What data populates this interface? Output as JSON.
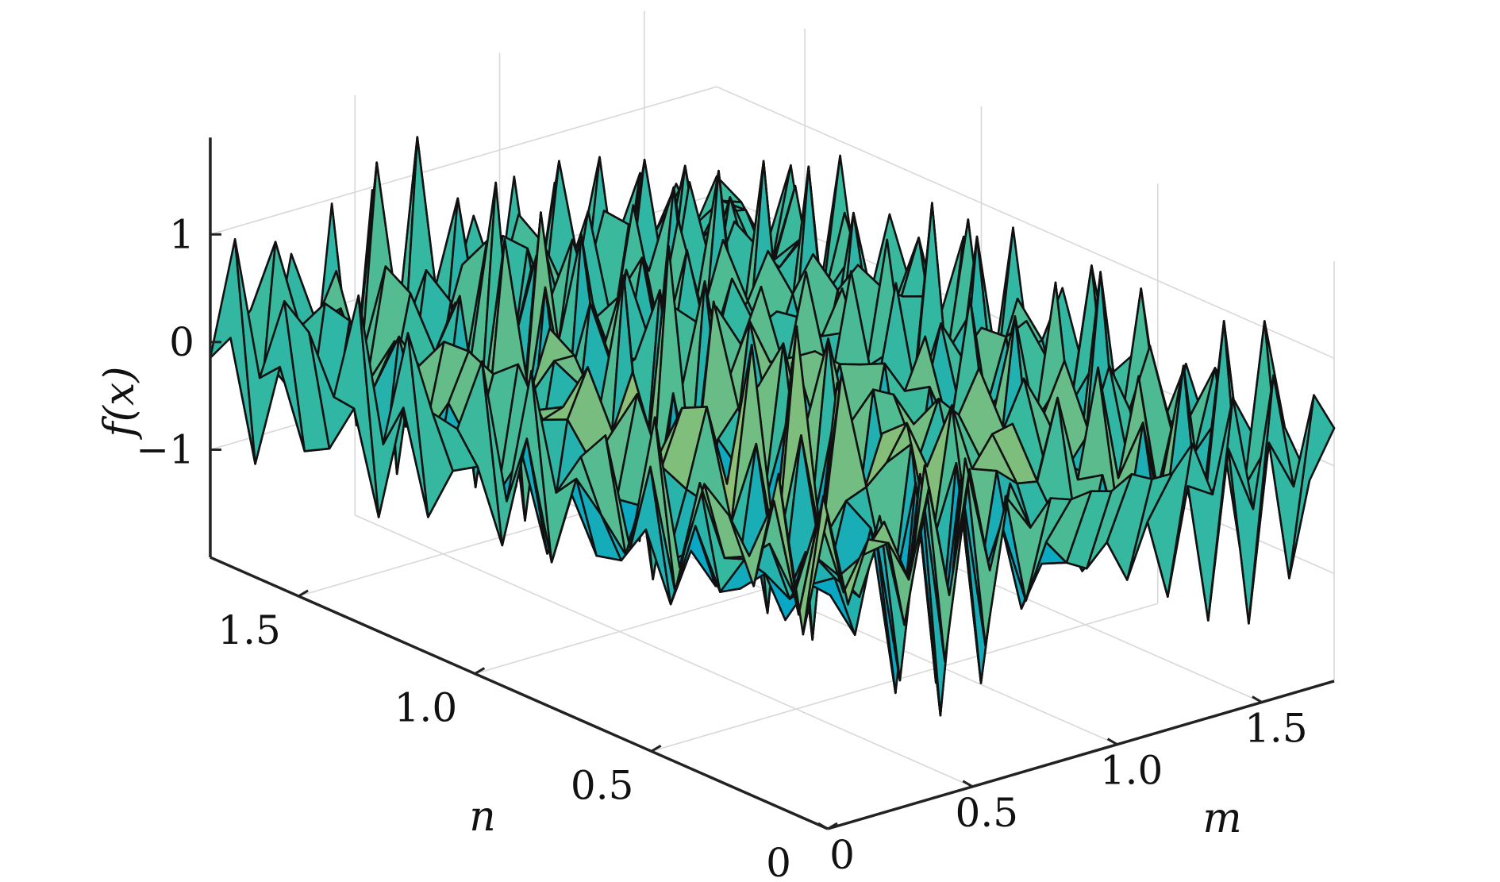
{
  "chart_data": {
    "type": "surface",
    "title": "",
    "xlabel": "m",
    "ylabel": "n",
    "zlabel": "f(x)",
    "xlim": [
      0,
      1.75
    ],
    "ylim": [
      0,
      1.75
    ],
    "zlim": [
      -2,
      1.9
    ],
    "x_ticks": [
      "0",
      "0.5",
      "1.0",
      "1.5"
    ],
    "y_ticks": [
      "0",
      "0.5",
      "1.0",
      "1.5"
    ],
    "z_ticks": [
      "−1",
      "0",
      "1"
    ],
    "x_tick_values": [
      0,
      0.5,
      1.0,
      1.5
    ],
    "y_tick_values": [
      0,
      0.5,
      1.0,
      1.5
    ],
    "z_tick_values": [
      -1,
      0,
      1
    ],
    "grid": true,
    "colormap": [
      "#352a87",
      "#0363e1",
      "#1485d4",
      "#06a7c6",
      "#38b99e",
      "#92bf73",
      "#d9ba56",
      "#fcce2e",
      "#f9fb0e"
    ],
    "grid_size": [
      26,
      26
    ],
    "x": [
      0,
      0.07,
      0.14,
      0.21,
      0.28,
      0.35,
      0.42,
      0.49,
      0.56,
      0.63,
      0.7,
      0.77,
      0.84,
      0.91,
      0.98,
      1.05,
      1.12,
      1.19,
      1.26,
      1.33,
      1.4,
      1.47,
      1.54,
      1.61,
      1.68,
      1.75
    ],
    "y": [
      0,
      0.07,
      0.14,
      0.21,
      0.28,
      0.35,
      0.42,
      0.49,
      0.56,
      0.63,
      0.7,
      0.77,
      0.84,
      0.91,
      0.98,
      1.05,
      1.12,
      1.19,
      1.26,
      1.33,
      1.4,
      1.47,
      1.54,
      1.61,
      1.68,
      1.75
    ],
    "surface": "f(m,n) = 0.9*sin(41*m+0.7)*cos(37*n+1.1) + 0.55*sin(23*m*n+2.3) + 0.25*cos(53*(m-n))"
  }
}
